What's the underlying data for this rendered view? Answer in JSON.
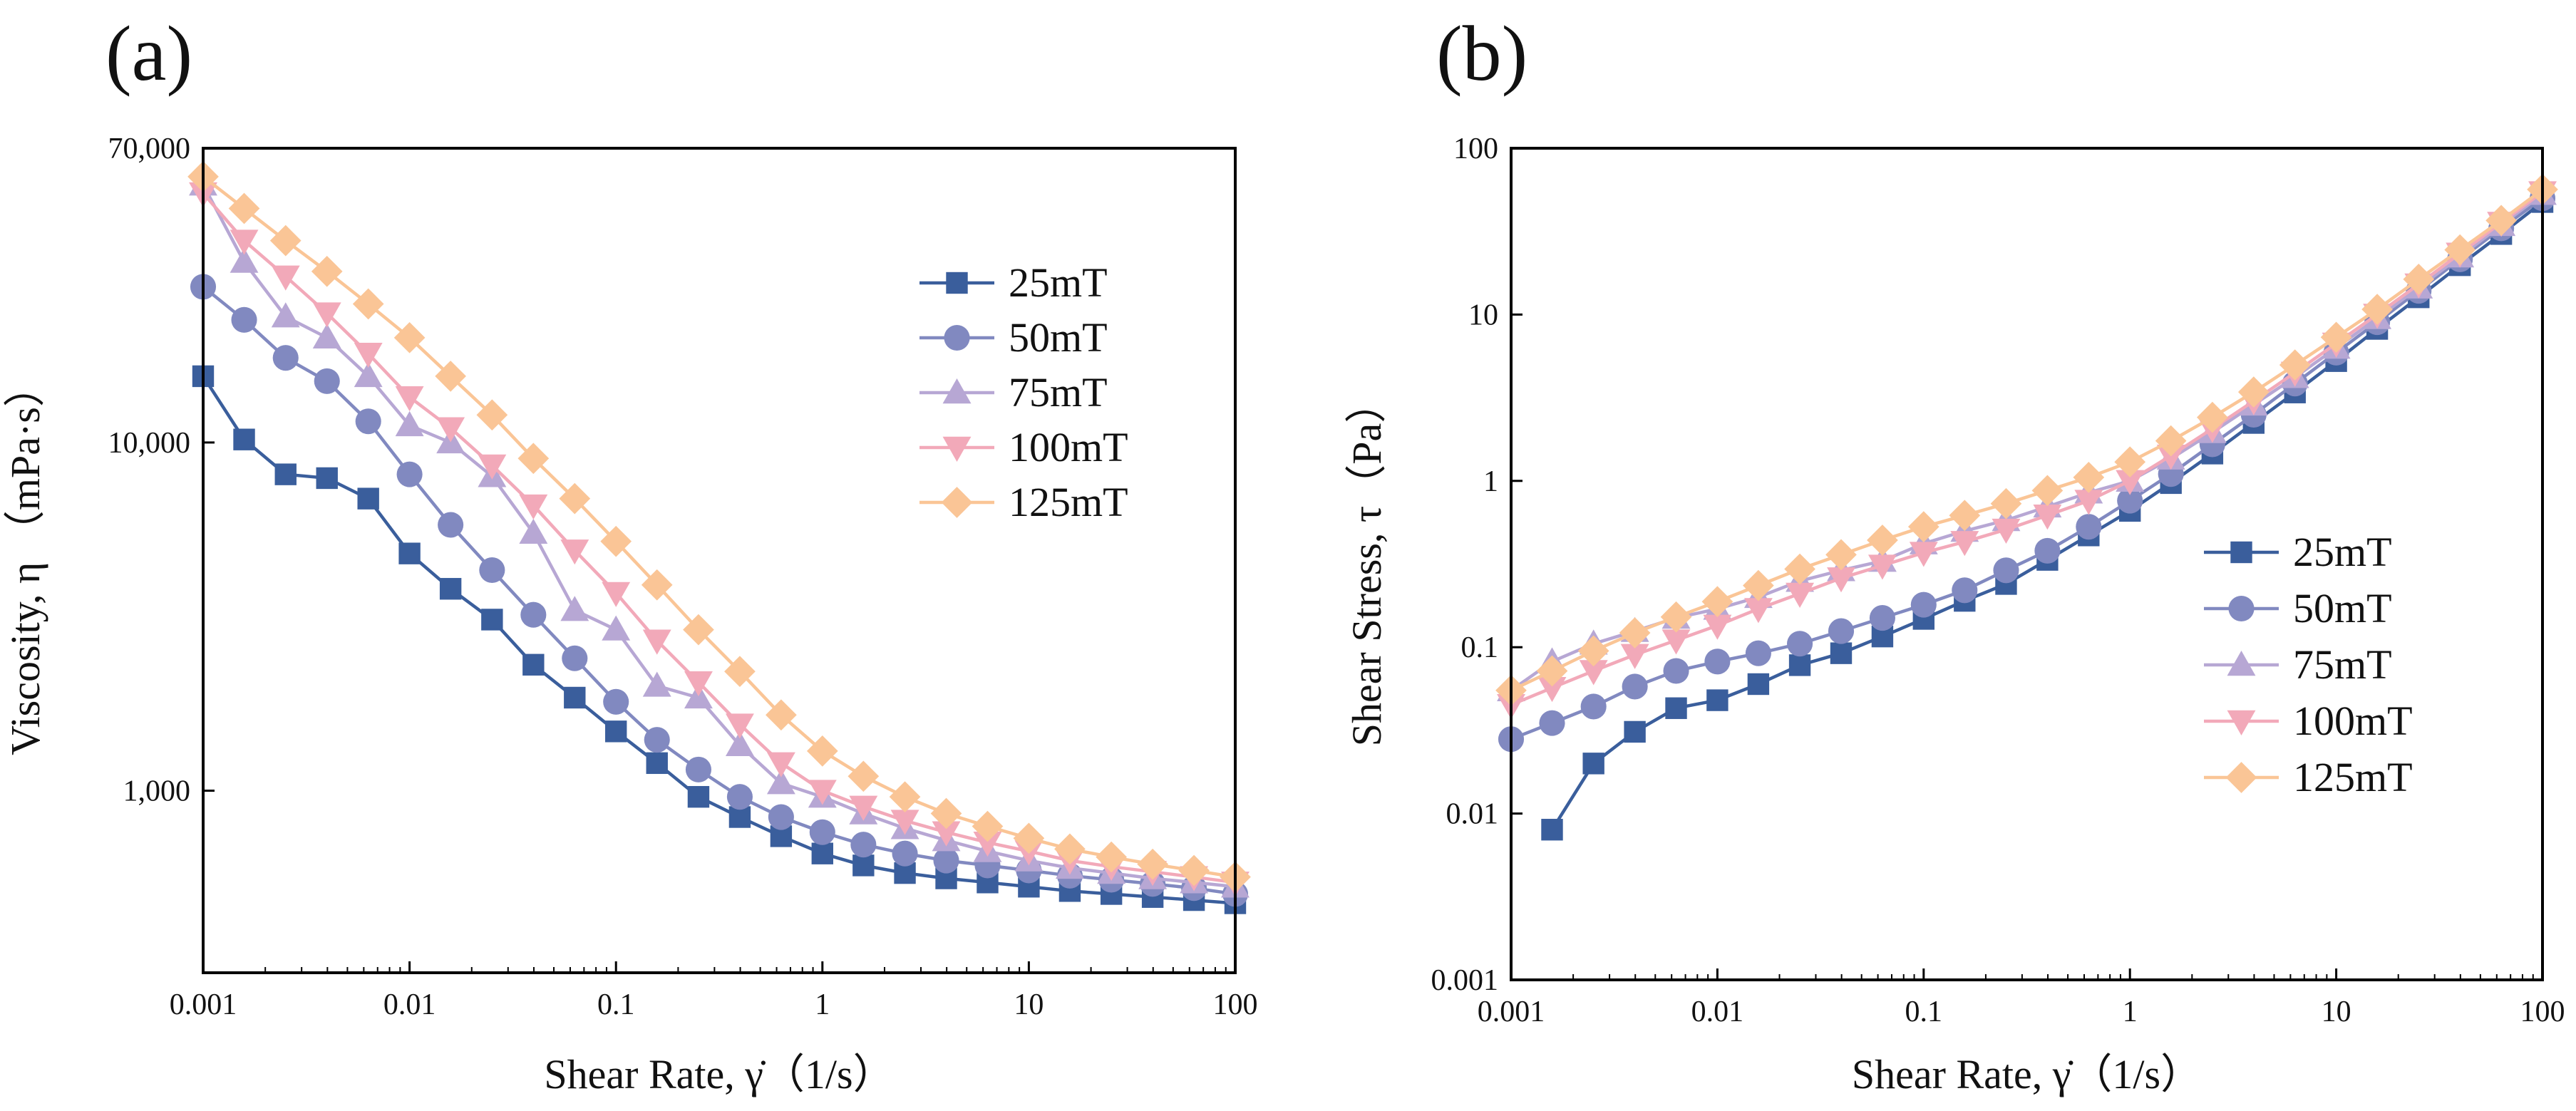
{
  "panels": {
    "a": {
      "label": "(a)"
    },
    "b": {
      "label": "(b)"
    }
  },
  "chart_data": [
    {
      "panel": "a",
      "type": "line",
      "title": "",
      "xlabel": "Shear Rate, γ̇（1/s）",
      "ylabel": "Viscosity, η （mPa·s）",
      "xscale": "log",
      "yscale": "log",
      "xlim": [
        0.001,
        100
      ],
      "ylim": [
        300,
        70000
      ],
      "xticks": [
        0.001,
        0.01,
        0.1,
        1,
        10,
        100
      ],
      "xtick_labels": [
        "0.001",
        "0.01",
        "0.1",
        "1",
        "10",
        "100"
      ],
      "yticks": [
        1000,
        10000,
        70000
      ],
      "ytick_labels": [
        "1,000",
        "10,000",
        "70,000"
      ],
      "legend_position": "upper-right",
      "x": [
        0.001,
        0.00158,
        0.00251,
        0.00398,
        0.00631,
        0.01,
        0.0158,
        0.0251,
        0.0398,
        0.0631,
        0.1,
        0.158,
        0.251,
        0.398,
        0.631,
        1,
        1.58,
        2.51,
        3.98,
        6.31,
        10,
        15.8,
        25.1,
        39.8,
        63.1,
        100
      ],
      "series": [
        {
          "name": "25mT",
          "color": "#3a5e9c",
          "marker": "square",
          "values": [
            15500,
            10200,
            8100,
            7900,
            6900,
            4800,
            3800,
            3100,
            2300,
            1850,
            1480,
            1200,
            960,
            840,
            740,
            660,
            610,
            580,
            560,
            545,
            530,
            515,
            505,
            495,
            485,
            475
          ]
        },
        {
          "name": "50mT",
          "color": "#8189c0",
          "marker": "circle",
          "values": [
            28000,
            22500,
            17500,
            15000,
            11500,
            8100,
            5800,
            4300,
            3200,
            2400,
            1800,
            1400,
            1150,
            960,
            840,
            760,
            700,
            660,
            630,
            610,
            590,
            570,
            555,
            540,
            525,
            505
          ]
        },
        {
          "name": "75mT",
          "color": "#b7a7d4",
          "marker": "triangle",
          "values": [
            55000,
            33000,
            23000,
            20000,
            15500,
            11200,
            10000,
            8000,
            5500,
            3300,
            2900,
            2000,
            1850,
            1350,
            1050,
            960,
            860,
            780,
            720,
            670,
            630,
            600,
            580,
            560,
            545,
            530
          ]
        },
        {
          "name": "100mT",
          "color": "#f2a9b9",
          "marker": "triangle-down",
          "values": [
            52000,
            38000,
            30000,
            23500,
            18000,
            13500,
            11000,
            8600,
            6600,
            4900,
            3700,
            2700,
            2050,
            1550,
            1200,
            1000,
            900,
            820,
            760,
            710,
            670,
            630,
            605,
            585,
            565,
            545
          ]
        },
        {
          "name": "125mT",
          "color": "#fac596",
          "marker": "diamond",
          "values": [
            58000,
            47000,
            38000,
            31000,
            25000,
            20000,
            15500,
            12000,
            9000,
            6900,
            5200,
            3900,
            2900,
            2200,
            1650,
            1300,
            1100,
            960,
            860,
            790,
            730,
            680,
            645,
            615,
            590,
            565
          ]
        }
      ]
    },
    {
      "panel": "b",
      "type": "line",
      "title": "",
      "xlabel": "Shear Rate, γ̇（1/s）",
      "ylabel": "Shear Stress, τ（Pa）",
      "xscale": "log",
      "yscale": "log",
      "xlim": [
        0.001,
        100
      ],
      "ylim": [
        0.001,
        100
      ],
      "xticks": [
        0.001,
        0.01,
        0.1,
        1,
        10,
        100
      ],
      "xtick_labels": [
        "0.001",
        "0.01",
        "0.1",
        "1",
        "10",
        "100"
      ],
      "yticks": [
        0.001,
        0.01,
        0.1,
        1,
        10,
        100
      ],
      "ytick_labels": [
        "0.001",
        "0.01",
        "0.1",
        "1",
        "10",
        "100"
      ],
      "legend_position": "lower-right",
      "x": [
        0.001,
        0.00158,
        0.00251,
        0.00398,
        0.00631,
        0.01,
        0.0158,
        0.0251,
        0.0398,
        0.0631,
        0.1,
        0.158,
        0.251,
        0.398,
        0.631,
        1,
        1.58,
        2.51,
        3.98,
        6.31,
        10,
        15.8,
        25.1,
        39.8,
        63.1,
        100
      ],
      "series": [
        {
          "name": "25mT",
          "color": "#3a5e9c",
          "marker": "square",
          "values": [
            null,
            0.008,
            0.02,
            0.031,
            0.043,
            0.048,
            0.06,
            0.078,
            0.092,
            0.116,
            0.148,
            0.19,
            0.24,
            0.335,
            0.47,
            0.66,
            0.97,
            1.46,
            2.23,
            3.4,
            5.25,
            8.2,
            12.7,
            19.8,
            30.5,
            47.5
          ]
        },
        {
          "name": "50mT",
          "color": "#8189c0",
          "marker": "circle",
          "values": [
            0.028,
            0.035,
            0.044,
            0.058,
            0.072,
            0.082,
            0.092,
            0.105,
            0.125,
            0.15,
            0.18,
            0.22,
            0.29,
            0.38,
            0.53,
            0.76,
            1.1,
            1.66,
            2.5,
            3.85,
            5.9,
            9.0,
            13.9,
            21.5,
            33,
            50
          ]
        },
        {
          "name": "75mT",
          "color": "#b7a7d4",
          "marker": "triangle",
          "values": [
            0.055,
            0.082,
            0.105,
            0.125,
            0.15,
            0.17,
            0.2,
            0.25,
            0.29,
            0.33,
            0.42,
            0.5,
            0.58,
            0.7,
            0.85,
            1.0,
            1.36,
            1.96,
            2.87,
            4.2,
            6.3,
            9.5,
            14.5,
            22.3,
            34.5,
            53
          ]
        },
        {
          "name": "100mT",
          "color": "#f2a9b9",
          "marker": "triangle-down",
          "values": [
            0.045,
            0.057,
            0.072,
            0.09,
            0.11,
            0.135,
            0.17,
            0.21,
            0.26,
            0.31,
            0.37,
            0.43,
            0.51,
            0.62,
            0.76,
            1.0,
            1.42,
            2.06,
            3.02,
            4.48,
            6.7,
            10.0,
            15.2,
            23.3,
            35.7,
            54.5
          ]
        },
        {
          "name": "125mT",
          "color": "#fac596",
          "marker": "diamond",
          "values": [
            0.055,
            0.072,
            0.095,
            0.122,
            0.152,
            0.188,
            0.235,
            0.295,
            0.36,
            0.44,
            0.53,
            0.62,
            0.73,
            0.875,
            1.05,
            1.3,
            1.74,
            2.41,
            3.42,
            4.98,
            7.3,
            10.75,
            16.3,
            24.5,
            36.8,
            56.5
          ]
        }
      ]
    }
  ]
}
